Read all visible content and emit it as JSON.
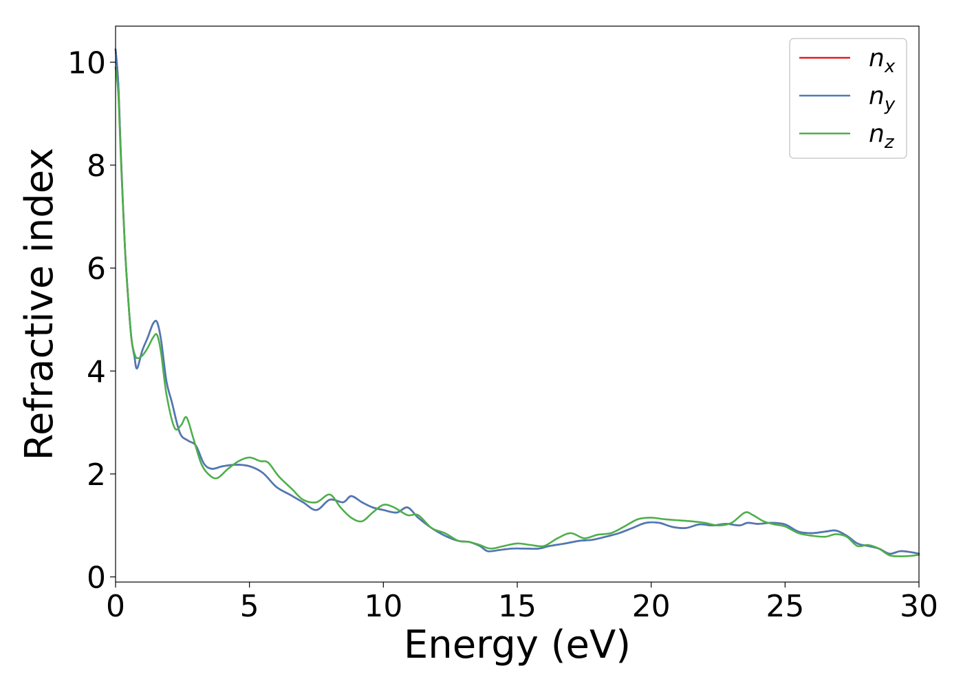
{
  "chart_data": {
    "type": "line",
    "title": "",
    "xlabel": "Energy (eV)",
    "ylabel": "Refractive index",
    "xlim": [
      0,
      30
    ],
    "ylim": [
      -0.1,
      10.7
    ],
    "xticks": [
      0,
      5,
      10,
      15,
      20,
      25,
      30
    ],
    "yticks": [
      0,
      2,
      4,
      6,
      8,
      10
    ],
    "grid": false,
    "legend_position": "top-right",
    "series": [
      {
        "name": "n",
        "subscript": "x",
        "color": "#e41a1c",
        "x": [
          0.0,
          0.1,
          0.2,
          0.35,
          0.5,
          0.6,
          0.7,
          0.8,
          1.0,
          1.2,
          1.4,
          1.55,
          1.7,
          1.9,
          2.1,
          2.4,
          2.7,
          3.0,
          3.3,
          3.6,
          4.0,
          4.5,
          5.0,
          5.5,
          6.0,
          6.5,
          7.0,
          7.5,
          8.0,
          8.5,
          8.8,
          9.2,
          9.6,
          10.0,
          10.5,
          10.9,
          11.3,
          11.8,
          12.3,
          12.8,
          13.2,
          13.6,
          13.9,
          14.3,
          14.8,
          15.3,
          15.8,
          16.2,
          16.8,
          17.3,
          17.8,
          18.3,
          18.8,
          19.3,
          19.8,
          20.3,
          20.8,
          21.3,
          21.8,
          22.3,
          22.8,
          23.3,
          23.6,
          24.0,
          24.5,
          25.0,
          25.5,
          26.0,
          26.5,
          26.9,
          27.3,
          27.7,
          28.1,
          28.5,
          28.9,
          29.3,
          29.7,
          30.0
        ],
        "y": [
          10.25,
          9.6,
          8.2,
          6.4,
          5.2,
          4.6,
          4.3,
          4.05,
          4.4,
          4.65,
          4.92,
          4.95,
          4.6,
          3.8,
          3.4,
          2.8,
          2.65,
          2.55,
          2.2,
          2.1,
          2.15,
          2.18,
          2.15,
          2.02,
          1.75,
          1.6,
          1.45,
          1.3,
          1.5,
          1.45,
          1.57,
          1.45,
          1.35,
          1.3,
          1.25,
          1.35,
          1.15,
          0.95,
          0.8,
          0.7,
          0.68,
          0.6,
          0.5,
          0.52,
          0.55,
          0.55,
          0.55,
          0.6,
          0.65,
          0.7,
          0.72,
          0.78,
          0.85,
          0.95,
          1.05,
          1.05,
          0.97,
          0.95,
          1.02,
          1.0,
          1.03,
          1.0,
          1.05,
          1.03,
          1.05,
          1.02,
          0.88,
          0.85,
          0.88,
          0.9,
          0.8,
          0.65,
          0.6,
          0.55,
          0.45,
          0.5,
          0.48,
          0.45
        ]
      },
      {
        "name": "n",
        "subscript": "y",
        "color": "#4a7ab8",
        "x": [
          0.0,
          0.1,
          0.2,
          0.35,
          0.5,
          0.6,
          0.7,
          0.8,
          1.0,
          1.2,
          1.4,
          1.55,
          1.7,
          1.9,
          2.1,
          2.4,
          2.7,
          3.0,
          3.3,
          3.6,
          4.0,
          4.5,
          5.0,
          5.5,
          6.0,
          6.5,
          7.0,
          7.5,
          8.0,
          8.5,
          8.8,
          9.2,
          9.6,
          10.0,
          10.5,
          10.9,
          11.3,
          11.8,
          12.3,
          12.8,
          13.2,
          13.6,
          13.9,
          14.3,
          14.8,
          15.3,
          15.8,
          16.2,
          16.8,
          17.3,
          17.8,
          18.3,
          18.8,
          19.3,
          19.8,
          20.3,
          20.8,
          21.3,
          21.8,
          22.3,
          22.8,
          23.3,
          23.6,
          24.0,
          24.5,
          25.0,
          25.5,
          26.0,
          26.5,
          26.9,
          27.3,
          27.7,
          28.1,
          28.5,
          28.9,
          29.3,
          29.7,
          30.0
        ],
        "y": [
          10.25,
          9.6,
          8.2,
          6.4,
          5.2,
          4.6,
          4.3,
          4.05,
          4.4,
          4.65,
          4.92,
          4.95,
          4.6,
          3.8,
          3.4,
          2.8,
          2.65,
          2.55,
          2.2,
          2.1,
          2.15,
          2.18,
          2.15,
          2.02,
          1.75,
          1.6,
          1.45,
          1.3,
          1.5,
          1.45,
          1.57,
          1.45,
          1.35,
          1.3,
          1.25,
          1.35,
          1.15,
          0.95,
          0.8,
          0.7,
          0.68,
          0.6,
          0.5,
          0.52,
          0.55,
          0.55,
          0.55,
          0.6,
          0.65,
          0.7,
          0.72,
          0.78,
          0.85,
          0.95,
          1.05,
          1.05,
          0.97,
          0.95,
          1.02,
          1.0,
          1.03,
          1.0,
          1.05,
          1.03,
          1.05,
          1.02,
          0.88,
          0.85,
          0.88,
          0.9,
          0.8,
          0.65,
          0.6,
          0.55,
          0.45,
          0.5,
          0.48,
          0.45
        ]
      },
      {
        "name": "n",
        "subscript": "z",
        "color": "#4daf4a",
        "x": [
          0.0,
          0.1,
          0.2,
          0.35,
          0.5,
          0.6,
          0.7,
          0.8,
          1.0,
          1.2,
          1.4,
          1.55,
          1.7,
          1.9,
          2.2,
          2.45,
          2.65,
          2.9,
          3.2,
          3.5,
          3.8,
          4.2,
          4.6,
          5.0,
          5.4,
          5.7,
          6.1,
          6.6,
          7.0,
          7.5,
          8.0,
          8.4,
          8.8,
          9.2,
          9.6,
          10.0,
          10.4,
          10.9,
          11.3,
          11.8,
          12.3,
          12.8,
          13.2,
          13.6,
          14.0,
          14.5,
          15.0,
          15.5,
          16.0,
          16.5,
          17.0,
          17.5,
          18.0,
          18.5,
          19.0,
          19.5,
          20.0,
          20.5,
          21.0,
          21.5,
          22.0,
          22.5,
          23.0,
          23.5,
          23.8,
          24.2,
          24.6,
          25.0,
          25.5,
          26.0,
          26.5,
          26.9,
          27.3,
          27.7,
          28.1,
          28.5,
          28.9,
          29.3,
          29.7,
          30.0
        ],
        "y": [
          9.9,
          9.4,
          8.1,
          6.4,
          5.2,
          4.6,
          4.35,
          4.25,
          4.3,
          4.45,
          4.65,
          4.7,
          4.35,
          3.55,
          2.9,
          2.95,
          3.1,
          2.7,
          2.2,
          1.98,
          1.92,
          2.1,
          2.25,
          2.32,
          2.25,
          2.22,
          1.95,
          1.7,
          1.5,
          1.45,
          1.6,
          1.35,
          1.15,
          1.08,
          1.25,
          1.4,
          1.35,
          1.2,
          1.2,
          0.95,
          0.85,
          0.7,
          0.68,
          0.62,
          0.55,
          0.6,
          0.65,
          0.62,
          0.6,
          0.75,
          0.85,
          0.75,
          0.82,
          0.85,
          0.98,
          1.12,
          1.15,
          1.12,
          1.1,
          1.08,
          1.05,
          1.0,
          1.05,
          1.25,
          1.2,
          1.08,
          1.02,
          0.98,
          0.85,
          0.8,
          0.78,
          0.83,
          0.78,
          0.6,
          0.62,
          0.55,
          0.42,
          0.4,
          0.41,
          0.43
        ]
      }
    ]
  }
}
